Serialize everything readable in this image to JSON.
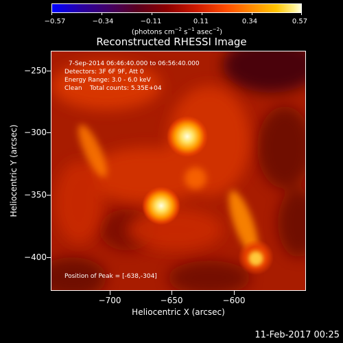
{
  "colorbar": {
    "ticks": [
      "−0.57",
      "−0.34",
      "−0.11",
      "0.11",
      "0.34",
      "0.57"
    ],
    "units_prefix": "(photons cm",
    "units_exp1": "−2",
    "units_mid1": " s",
    "units_exp2": "−1",
    "units_mid2": " asec",
    "units_exp3": "−2",
    "units_suffix": ")"
  },
  "title": "Reconstructed RHESSI Image",
  "info": {
    "time_range": "7-Sep-2014 06:46:40.000 to 06:56:40.000",
    "detectors": "Detectors: 3F 6F 9F, Att 0",
    "energy": "Energy Range: 3.0 - 6.0 keV",
    "clean": "Clean    Total counts: 5.35E+04",
    "peak": "Position of Peak = [-638,-304]"
  },
  "axes": {
    "xlabel": "Heliocentric X (arcsec)",
    "ylabel": "Heliocentric Y (arcsec)",
    "xticks": [
      "−700",
      "−650",
      "−600"
    ],
    "yticks": [
      "−250",
      "−300",
      "−350",
      "−400"
    ]
  },
  "footer": "11-Feb-2017 00:25",
  "colors": {
    "background": "#000000",
    "image_base": "#a01800",
    "source_peak": "#ffffe0"
  }
}
